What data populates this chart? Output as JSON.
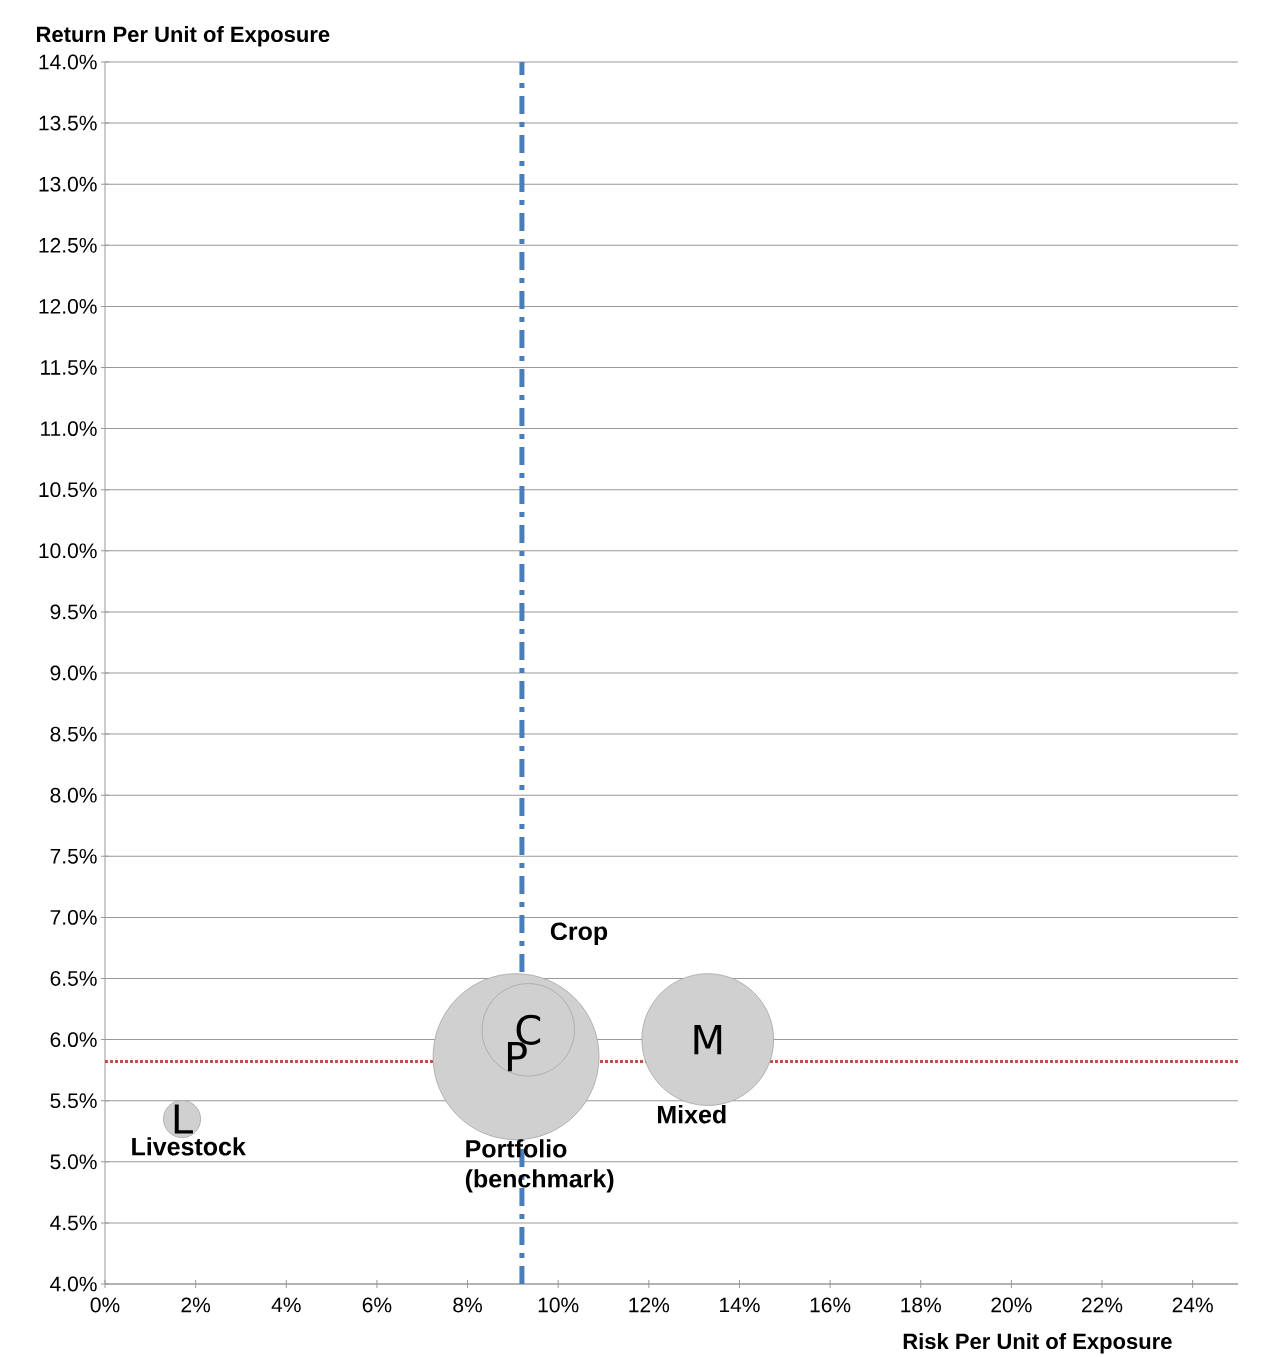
{
  "chart_data": {
    "type": "bubble",
    "xlabel": "Risk Per Unit of Exposure",
    "ylabel": "Return Per Unit of Exposure",
    "series": [
      {
        "name": "Livestock",
        "color": "#d0d0d0",
        "x": [
          1.7
        ],
        "values": [
          5.35
        ],
        "sizes": [
          0.05
        ]
      },
      {
        "name": "Portfolio (benchmark)",
        "color": "#d0d0d0",
        "x": [
          9.07
        ],
        "values": [
          5.86
        ],
        "sizes": [
          1
        ]
      },
      {
        "name": "Crop",
        "color": "#d0d0d0",
        "x": [
          9.34
        ],
        "values": [
          6.08
        ],
        "sizes": [
          0.31
        ]
      },
      {
        "name": "Mixed",
        "color": "#d0d0d0",
        "x": [
          13.3
        ],
        "values": [
          6.0
        ],
        "sizes": [
          0.63
        ]
      }
    ],
    "xlim": [
      0,
      25
    ],
    "ylim": [
      4.0,
      14.0
    ],
    "xticks": [
      {
        "value": 0,
        "label": "0%"
      },
      {
        "value": 2,
        "label": "2%"
      },
      {
        "value": 4,
        "label": "4%"
      },
      {
        "value": 6,
        "label": "6%"
      },
      {
        "value": 8,
        "label": "8%"
      },
      {
        "value": 10,
        "label": "10%"
      },
      {
        "value": 12,
        "label": "12%"
      },
      {
        "value": 14,
        "label": "14%"
      },
      {
        "value": 16,
        "label": "16%"
      },
      {
        "value": 18,
        "label": "18%"
      },
      {
        "value": 20,
        "label": "20%"
      },
      {
        "value": 22,
        "label": "22%"
      },
      {
        "value": 24,
        "label": "24%"
      }
    ],
    "yticks": [
      {
        "value": 4.0,
        "label": "4.0%"
      },
      {
        "value": 4.5,
        "label": "4.5%"
      },
      {
        "value": 5.0,
        "label": "5.0%"
      },
      {
        "value": 5.5,
        "label": "5.5%"
      },
      {
        "value": 6.0,
        "label": "6.0%"
      },
      {
        "value": 6.5,
        "label": "6.5%"
      },
      {
        "value": 7.0,
        "label": "7.0%"
      },
      {
        "value": 7.5,
        "label": "7.5%"
      },
      {
        "value": 8.0,
        "label": "8.0%"
      },
      {
        "value": 8.5,
        "label": "8.5%"
      },
      {
        "value": 9.0,
        "label": "9.0%"
      },
      {
        "value": 9.5,
        "label": "9.5%"
      },
      {
        "value": 10.0,
        "label": "10.0%"
      },
      {
        "value": 10.5,
        "label": "10.5%"
      },
      {
        "value": 11.0,
        "label": "11.0%"
      },
      {
        "value": 11.5,
        "label": "11.5%"
      },
      {
        "value": 12.0,
        "label": "12.0%"
      },
      {
        "value": 12.5,
        "label": "12.5%"
      },
      {
        "value": 13.0,
        "label": "13.0%"
      },
      {
        "value": 13.5,
        "label": "13.5%"
      },
      {
        "value": 14.0,
        "label": "14.0%"
      }
    ],
    "grid": "y",
    "ref_lines": [
      {
        "axis": "x",
        "value": 9.2,
        "color": "#4a7ebb",
        "line_style": "dashdot"
      },
      {
        "axis": "y",
        "value": 5.82,
        "color": "#c0504d",
        "line_style": "dotted"
      }
    ],
    "annotations": [
      {
        "text": "L",
        "x": 1.7,
        "y": 5.35
      },
      {
        "text": "P",
        "x": 9.07,
        "y": 5.86
      },
      {
        "text": "C",
        "x": 9.34,
        "y": 6.08
      },
      {
        "text": "M",
        "x": 13.3,
        "y": 6.0
      }
    ]
  }
}
